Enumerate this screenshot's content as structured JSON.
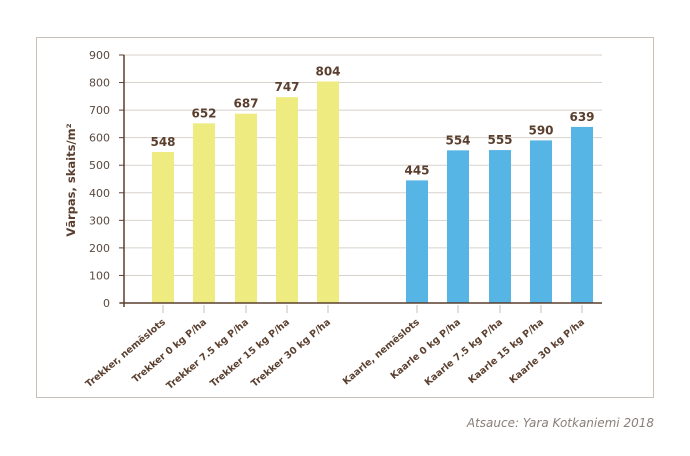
{
  "chart_data": {
    "type": "bar",
    "ylabel": "Vārpas, skaits/m²",
    "ylim": [
      0,
      900
    ],
    "yticks": [
      0,
      100,
      200,
      300,
      400,
      500,
      600,
      700,
      800,
      900
    ],
    "grid": true,
    "groups": [
      {
        "color": "#eeec80",
        "categories": [
          "Trekker, nemēslots",
          "Trekker 0 kg P/ha",
          "Trekker 7.5 kg P/ha",
          "Trekker 15 kg P/ha",
          "Trekker 30 kg P/ha"
        ],
        "values": [
          548,
          652,
          687,
          747,
          804
        ]
      },
      {
        "color": "#57b5e6",
        "categories": [
          "Kaarle, nemēslots",
          "Kaarle 0 kg P/ha",
          "Kaarle 7.5 kg P/ha",
          "Kaarle 15 kg P/ha",
          "Kaarle 30 kg P/ha"
        ],
        "values": [
          445,
          554,
          555,
          590,
          639
        ]
      }
    ]
  },
  "source": "Atsauce: Yara Kotkaniemi 2018"
}
